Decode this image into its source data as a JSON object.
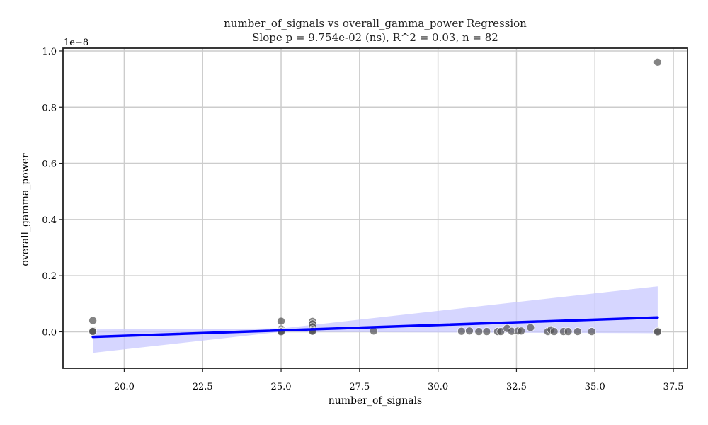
{
  "chart_data": {
    "type": "scatter",
    "title": "number_of_signals vs overall_gamma_power Regression",
    "subtitle": "Slope p = 9.754e-02 (ns), R^2 = 0.03, n = 82",
    "xlabel": "number_of_signals",
    "ylabel": "overall_gamma_power",
    "y_offset_label": "1e−8",
    "xlim": [
      18.05,
      37.95
    ],
    "ylim": [
      -0.13,
      1.01
    ],
    "x_ticks": [
      20.0,
      22.5,
      25.0,
      27.5,
      30.0,
      32.5,
      35.0,
      37.5
    ],
    "x_tick_labels": [
      "20.0",
      "22.5",
      "25.0",
      "27.5",
      "30.0",
      "32.5",
      "35.0",
      "37.5"
    ],
    "y_ticks": [
      0.0,
      0.2,
      0.4,
      0.6,
      0.8,
      1.0
    ],
    "y_tick_labels": [
      "0.0",
      "0.2",
      "0.4",
      "0.6",
      "0.8",
      "1.0"
    ],
    "grid": true,
    "points": [
      {
        "x": 19,
        "y": 0.04
      },
      {
        "x": 19,
        "y": 0.005
      },
      {
        "x": 19,
        "y": 0.003
      },
      {
        "x": 19,
        "y": 0.001
      },
      {
        "x": 25,
        "y": 0.038
      },
      {
        "x": 25,
        "y": 0.01
      },
      {
        "x": 25,
        "y": 0.005
      },
      {
        "x": 25,
        "y": 0.002
      },
      {
        "x": 25,
        "y": 0.0
      },
      {
        "x": 26,
        "y": 0.037
      },
      {
        "x": 26,
        "y": 0.028
      },
      {
        "x": 26,
        "y": 0.018
      },
      {
        "x": 26,
        "y": 0.008
      },
      {
        "x": 26,
        "y": 0.004
      },
      {
        "x": 26,
        "y": 0.002
      },
      {
        "x": 27.95,
        "y": 0.003
      },
      {
        "x": 30.75,
        "y": 0.002
      },
      {
        "x": 31.0,
        "y": 0.003
      },
      {
        "x": 31.3,
        "y": 0.001
      },
      {
        "x": 31.55,
        "y": 0.001
      },
      {
        "x": 31.9,
        "y": 0.001
      },
      {
        "x": 32.0,
        "y": 0.001
      },
      {
        "x": 32.2,
        "y": 0.012
      },
      {
        "x": 32.35,
        "y": 0.002
      },
      {
        "x": 32.55,
        "y": 0.003
      },
      {
        "x": 32.65,
        "y": 0.003
      },
      {
        "x": 32.95,
        "y": 0.015
      },
      {
        "x": 33.5,
        "y": 0.001
      },
      {
        "x": 33.6,
        "y": 0.007
      },
      {
        "x": 33.7,
        "y": 0.001
      },
      {
        "x": 34.0,
        "y": 0.001
      },
      {
        "x": 34.15,
        "y": 0.001
      },
      {
        "x": 34.45,
        "y": 0.001
      },
      {
        "x": 34.9,
        "y": 0.001
      },
      {
        "x": 37,
        "y": 0.96
      },
      {
        "x": 37,
        "y": 0.002
      },
      {
        "x": 37,
        "y": 0.0
      }
    ],
    "regression": {
      "x": [
        19,
        37
      ],
      "y": [
        -0.018,
        0.051
      ]
    },
    "confidence_band": {
      "x": [
        19,
        25,
        37
      ],
      "lower": [
        -0.075,
        0.0,
        -0.005
      ],
      "upper": [
        0.008,
        0.012,
        0.162
      ]
    },
    "colors": {
      "points": "#555555",
      "line": "#0000ff",
      "band": "#c8c8ff",
      "grid": "#cccccc",
      "axes": "#222222"
    }
  }
}
